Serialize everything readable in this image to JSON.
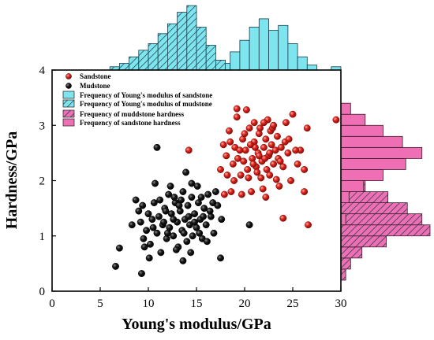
{
  "chart_data": {
    "type": "scatter",
    "xlabel": "Young's modulus/GPa",
    "ylabel": "Hardness/GPa",
    "xlim": [
      0,
      30
    ],
    "ylim": [
      0,
      4
    ],
    "xticks": [
      "0",
      "5",
      "10",
      "15",
      "20",
      "25",
      "30"
    ],
    "yticks": [
      "0",
      "1",
      "2",
      "3",
      "4"
    ],
    "legend_position": "top-left",
    "series": [
      {
        "name": "Sandstone",
        "color": "#e0241c",
        "points": [
          [
            14.2,
            2.55
          ],
          [
            17.8,
            2.65
          ],
          [
            18.1,
            2.45
          ],
          [
            18.4,
            2.9
          ],
          [
            18.8,
            2.3
          ],
          [
            18.9,
            2.0
          ],
          [
            19.3,
            2.4
          ],
          [
            19.6,
            2.1
          ],
          [
            19.2,
            3.15
          ],
          [
            19.8,
            2.75
          ],
          [
            20.1,
            2.55
          ],
          [
            20.3,
            2.2
          ],
          [
            20.5,
            2.95
          ],
          [
            20.8,
            2.4
          ],
          [
            21.0,
            2.7
          ],
          [
            21.2,
            2.25
          ],
          [
            21.4,
            2.5
          ],
          [
            21.5,
            2.85
          ],
          [
            21.7,
            2.05
          ],
          [
            21.8,
            2.35
          ],
          [
            22.0,
            2.6
          ],
          [
            22.2,
            2.75
          ],
          [
            22.3,
            2.2
          ],
          [
            22.5,
            2.45
          ],
          [
            22.7,
            2.9
          ],
          [
            22.8,
            2.65
          ],
          [
            23.0,
            2.3
          ],
          [
            23.2,
            2.55
          ],
          [
            23.4,
            2.8
          ],
          [
            23.5,
            2.4
          ],
          [
            23.8,
            2.6
          ],
          [
            24.0,
            2.25
          ],
          [
            24.2,
            2.7
          ],
          [
            24.5,
            2.5
          ],
          [
            20.9,
            2.3
          ],
          [
            21.3,
            2.15
          ],
          [
            22.1,
            2.4
          ],
          [
            22.6,
            2.1
          ],
          [
            21.6,
            2.95
          ],
          [
            22.9,
            2.95
          ],
          [
            20.0,
            2.85
          ],
          [
            19.0,
            2.6
          ],
          [
            18.5,
            2.7
          ],
          [
            17.5,
            2.2
          ],
          [
            17.9,
            1.75
          ],
          [
            18.6,
            1.8
          ],
          [
            19.7,
            1.75
          ],
          [
            20.7,
            1.8
          ],
          [
            21.9,
            1.85
          ],
          [
            23.6,
            1.9
          ],
          [
            24.8,
            2.0
          ],
          [
            25.5,
            2.3
          ],
          [
            25.8,
            2.55
          ],
          [
            26.2,
            2.2
          ],
          [
            24.3,
            3.05
          ],
          [
            22.4,
            3.1
          ],
          [
            25.0,
            3.2
          ],
          [
            26.5,
            2.95
          ],
          [
            29.5,
            3.1
          ],
          [
            26.2,
            1.8
          ],
          [
            26.6,
            1.2
          ],
          [
            24.0,
            1.32
          ],
          [
            19.2,
            3.3
          ],
          [
            20.2,
            3.28
          ],
          [
            21.0,
            3.05
          ],
          [
            23.0,
            3.0
          ],
          [
            23.3,
            2.02
          ],
          [
            22.2,
            1.7
          ],
          [
            21.1,
            2.6
          ],
          [
            20.4,
            2.05
          ],
          [
            19.5,
            2.55
          ],
          [
            18.2,
            2.1
          ],
          [
            24.6,
            2.75
          ],
          [
            25.3,
            2.55
          ],
          [
            23.7,
            2.35
          ],
          [
            22.0,
            3.05
          ],
          [
            21.5,
            2.45
          ],
          [
            20.6,
            2.65
          ],
          [
            19.9,
            2.35
          ],
          [
            22.6,
            2.5
          ]
        ]
      },
      {
        "name": "Mudstone",
        "color": "#111111",
        "points": [
          [
            6.6,
            0.45
          ],
          [
            7.0,
            0.78
          ],
          [
            9.3,
            0.32
          ],
          [
            8.3,
            1.2
          ],
          [
            8.7,
            1.65
          ],
          [
            9.0,
            1.45
          ],
          [
            9.2,
            1.25
          ],
          [
            9.5,
            0.95
          ],
          [
            9.8,
            1.1
          ],
          [
            10.0,
            1.4
          ],
          [
            10.2,
            0.85
          ],
          [
            10.4,
            1.3
          ],
          [
            10.6,
            1.6
          ],
          [
            10.9,
            1.05
          ],
          [
            11.1,
            1.35
          ],
          [
            11.3,
            0.7
          ],
          [
            11.5,
            1.2
          ],
          [
            11.7,
            1.5
          ],
          [
            11.9,
            0.95
          ],
          [
            12.1,
            1.75
          ],
          [
            12.2,
            1.15
          ],
          [
            12.4,
            1.4
          ],
          [
            12.6,
            1.0
          ],
          [
            12.8,
            1.6
          ],
          [
            13.0,
            1.25
          ],
          [
            13.1,
            0.8
          ],
          [
            13.3,
            1.45
          ],
          [
            13.5,
            1.1
          ],
          [
            13.6,
            1.8
          ],
          [
            13.8,
            1.3
          ],
          [
            14.0,
            0.9
          ],
          [
            14.1,
            1.55
          ],
          [
            14.3,
            1.2
          ],
          [
            14.5,
            1.7
          ],
          [
            14.6,
            1.0
          ],
          [
            14.8,
            1.4
          ],
          [
            15.0,
            1.15
          ],
          [
            15.2,
            1.6
          ],
          [
            15.4,
            1.3
          ],
          [
            15.6,
            0.95
          ],
          [
            15.8,
            1.5
          ],
          [
            16.0,
            1.2
          ],
          [
            16.2,
            1.75
          ],
          [
            16.5,
            1.35
          ],
          [
            16.8,
            1.05
          ],
          [
            17.2,
            1.55
          ],
          [
            17.5,
            0.6
          ],
          [
            17.0,
            1.8
          ],
          [
            10.7,
            1.95
          ],
          [
            10.9,
            2.6
          ],
          [
            13.9,
            2.15
          ],
          [
            14.5,
            1.95
          ],
          [
            15.1,
            1.9
          ],
          [
            12.3,
            1.9
          ],
          [
            13.4,
            1.65
          ],
          [
            11.6,
            1.25
          ],
          [
            12.9,
            0.75
          ],
          [
            13.6,
            0.55
          ],
          [
            10.1,
            0.6
          ],
          [
            9.6,
            0.8
          ],
          [
            14.2,
            1.35
          ],
          [
            15.3,
            1.05
          ],
          [
            16.4,
            1.45
          ],
          [
            11.8,
            1.45
          ],
          [
            12.6,
            1.3
          ],
          [
            13.2,
            1.55
          ],
          [
            14.8,
            1.25
          ],
          [
            15.5,
            1.7
          ],
          [
            16.1,
            0.9
          ],
          [
            17.6,
            1.3
          ],
          [
            20.5,
            1.2
          ],
          [
            12.0,
            1.05
          ],
          [
            11.2,
            1.65
          ],
          [
            13.7,
            1.05
          ],
          [
            14.4,
            0.7
          ],
          [
            15.7,
            1.35
          ],
          [
            10.5,
            1.15
          ],
          [
            9.4,
            1.55
          ],
          [
            16.7,
            1.6
          ],
          [
            12.7,
            1.7
          ]
        ]
      }
    ],
    "histograms": [
      {
        "name": "Frequency of Young's modulus of sandstone",
        "axis": "x",
        "fill": "#7ee4ee",
        "hatched": false,
        "bins": [
          [
            17.5,
            18.5,
            8
          ],
          [
            18.5,
            19.5,
            22
          ],
          [
            19.5,
            20.5,
            36
          ],
          [
            20.5,
            21.5,
            52
          ],
          [
            21.5,
            22.5,
            62
          ],
          [
            22.5,
            23.5,
            48
          ],
          [
            23.5,
            24.5,
            54
          ],
          [
            24.5,
            25.5,
            32
          ],
          [
            25.5,
            26.5,
            16
          ],
          [
            26.5,
            27.5,
            6
          ],
          [
            29.0,
            30.0,
            4
          ]
        ]
      },
      {
        "name": "Frequency of Young's modulus of mudstone",
        "axis": "x",
        "fill": "#7ee4ee",
        "hatched": true,
        "bins": [
          [
            6.0,
            7.0,
            4
          ],
          [
            7.0,
            8.0,
            8
          ],
          [
            8.0,
            9.0,
            16
          ],
          [
            9.0,
            10.0,
            24
          ],
          [
            10.0,
            11.0,
            32
          ],
          [
            11.0,
            12.0,
            44
          ],
          [
            12.0,
            13.0,
            56
          ],
          [
            13.0,
            14.0,
            70
          ],
          [
            14.0,
            15.0,
            78
          ],
          [
            15.0,
            16.0,
            52
          ],
          [
            16.0,
            17.0,
            30
          ],
          [
            17.0,
            18.0,
            12
          ]
        ]
      },
      {
        "name": "Frequency of muddstone hardness",
        "axis": "y",
        "fill": "#ee6fb3",
        "hatched": true,
        "bins": [
          [
            0.2,
            0.4,
            6
          ],
          [
            0.4,
            0.6,
            12
          ],
          [
            0.6,
            0.8,
            26
          ],
          [
            0.8,
            1.0,
            56
          ],
          [
            1.0,
            1.2,
            110
          ],
          [
            1.2,
            1.4,
            100
          ],
          [
            1.4,
            1.6,
            82
          ],
          [
            1.6,
            1.8,
            58
          ],
          [
            1.8,
            2.0,
            30
          ],
          [
            2.0,
            2.2,
            14
          ]
        ]
      },
      {
        "name": "Frequency of sandstone hardness",
        "axis": "y",
        "fill": "#ee6fb3",
        "hatched": false,
        "bins": [
          [
            1.2,
            1.4,
            6
          ],
          [
            1.6,
            1.8,
            10
          ],
          [
            1.8,
            2.0,
            28
          ],
          [
            2.0,
            2.2,
            52
          ],
          [
            2.2,
            2.4,
            80
          ],
          [
            2.4,
            2.6,
            100
          ],
          [
            2.6,
            2.8,
            76
          ],
          [
            2.8,
            3.0,
            52
          ],
          [
            3.0,
            3.2,
            30
          ],
          [
            3.2,
            3.4,
            12
          ]
        ]
      }
    ],
    "legend": {
      "entries": [
        {
          "label": "Sandstone",
          "kind": "marker",
          "color": "#e0241c"
        },
        {
          "label": "Mudstone",
          "kind": "marker",
          "color": "#111111"
        },
        {
          "label": "Frequency of Young's modulus of sandstone",
          "kind": "box",
          "color": "#7ee4ee",
          "hatched": false
        },
        {
          "label": "Frequency of Young's modulus of mudstone",
          "kind": "box",
          "color": "#7ee4ee",
          "hatched": true
        },
        {
          "label": "Frequency of muddstone hardness",
          "kind": "box",
          "color": "#ee6fb3",
          "hatched": true
        },
        {
          "label": "Frequency of sandstone hardness",
          "kind": "box",
          "color": "#ee6fb3",
          "hatched": false
        }
      ]
    }
  }
}
